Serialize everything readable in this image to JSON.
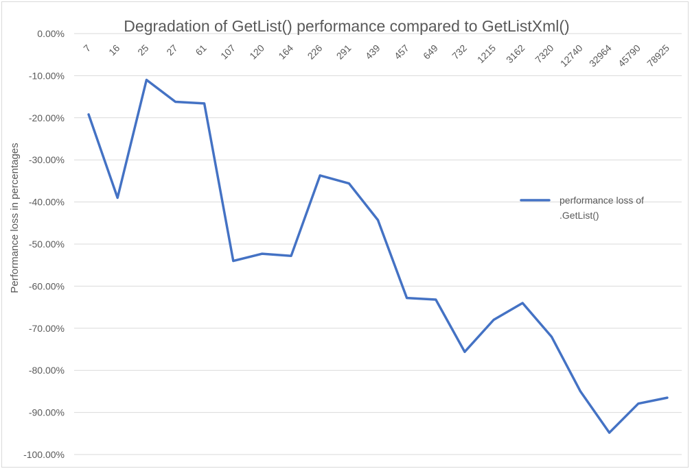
{
  "chart_data": {
    "type": "line",
    "title": "Degradation of GetList() performance compared to GetListXml()",
    "xlabel": "",
    "ylabel": "Performance loss in percentages",
    "categories": [
      "7",
      "16",
      "25",
      "27",
      "61",
      "107",
      "120",
      "164",
      "226",
      "291",
      "439",
      "457",
      "649",
      "732",
      "1215",
      "3162",
      "7320",
      "12740",
      "32964",
      "45790",
      "78925"
    ],
    "series": [
      {
        "name": "performance loss of .GetList()",
        "color": "#4472c4",
        "values": [
          -19.2,
          -39.0,
          -11.0,
          -16.2,
          -16.6,
          -54.0,
          -52.3,
          -52.8,
          -33.7,
          -35.6,
          -44.3,
          -62.8,
          -63.2,
          -75.6,
          -68.0,
          -64.0,
          -72.0,
          -85.0,
          -94.8,
          -87.9,
          -86.5
        ]
      }
    ],
    "ylim": [
      -100,
      0
    ],
    "ytick_step": 10,
    "yticks": [
      "0.00%",
      "-10.00%",
      "-20.00%",
      "-30.00%",
      "-40.00%",
      "-50.00%",
      "-60.00%",
      "-70.00%",
      "-80.00%",
      "-90.00%",
      "-100.00%"
    ],
    "grid": true,
    "legend_position": "right",
    "x_axis_position": "top"
  }
}
